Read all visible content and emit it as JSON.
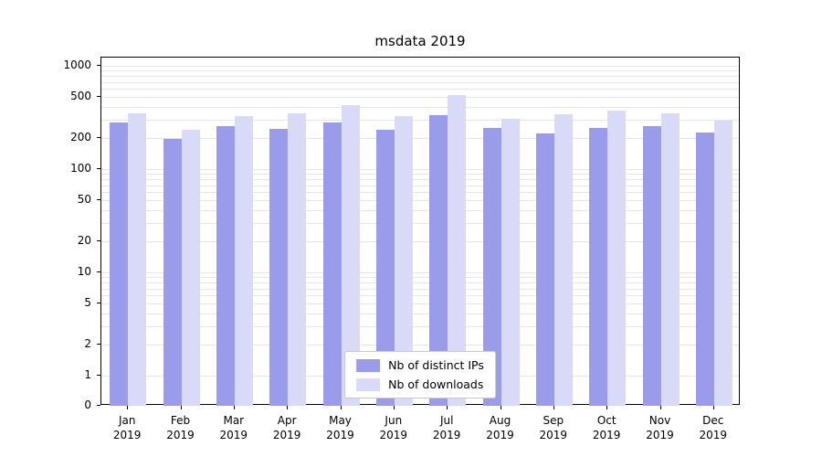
{
  "chart_data": {
    "type": "bar",
    "title": "msdata 2019",
    "categories": [
      "Jan",
      "Feb",
      "Mar",
      "Apr",
      "May",
      "Jun",
      "Jul",
      "Aug",
      "Sep",
      "Oct",
      "Nov",
      "Dec"
    ],
    "year": "2019",
    "series": [
      {
        "name": "Nb of distinct IPs",
        "color": "#9b9bec",
        "values": [
          285,
          195,
          260,
          245,
          285,
          240,
          330,
          250,
          220,
          250,
          260,
          225
        ]
      },
      {
        "name": "Nb of downloads",
        "color": "#d9d9f8",
        "values": [
          350,
          240,
          325,
          345,
          415,
          325,
          520,
          310,
          340,
          370,
          350,
          295
        ]
      }
    ],
    "yscale": "log",
    "yticks": [
      0,
      1,
      2,
      5,
      10,
      20,
      50,
      100,
      200,
      500,
      1000
    ],
    "ylim": [
      0,
      1000
    ],
    "grid": "horizontal-minor",
    "legend_position": "lower-center",
    "xlabel": "",
    "ylabel": ""
  }
}
